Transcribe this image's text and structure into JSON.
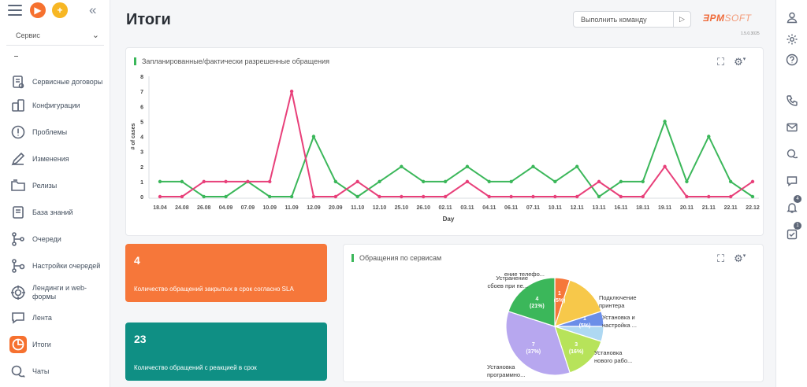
{
  "sidebar": {
    "workspace": "Сервис",
    "items": [
      {
        "label": "Сервисные договоры",
        "icon": "contract-icon"
      },
      {
        "label": "Конфигурации",
        "icon": "configuration-icon"
      },
      {
        "label": "Проблемы",
        "icon": "problem-icon"
      },
      {
        "label": "Изменения",
        "icon": "pencil-icon"
      },
      {
        "label": "Релизы",
        "icon": "release-folder-icon"
      },
      {
        "label": "База знаний",
        "icon": "knowledge-book-icon"
      },
      {
        "label": "Очереди",
        "icon": "queue-icon"
      },
      {
        "label": "Настройки очередей",
        "icon": "queue-settings-icon"
      },
      {
        "label": "Лендинги и web-формы",
        "icon": "target-icon"
      },
      {
        "label": "Лента",
        "icon": "feed-icon"
      },
      {
        "label": "Итоги",
        "icon": "analytics-pie-icon"
      },
      {
        "label": "Чаты",
        "icon": "chat-icon"
      }
    ],
    "active_item": "Итоги"
  },
  "header": {
    "title": "Итоги",
    "command_placeholder": "Выполнить команду",
    "logo_text_1": "ƎPM",
    "logo_text_2": "SOFT",
    "version": "1.5.0.3025"
  },
  "rightbar": {
    "icons": [
      "user-icon",
      "gear-icon",
      "help-icon",
      "phone-icon",
      "email-icon",
      "chat-bubbles-icon",
      "comment-icon",
      "bell-icon",
      "task-check-icon"
    ],
    "bell_badge": "4",
    "task_badge": "1"
  },
  "chart_card": {
    "title": "Запланированные/фактически разрешенные обращения"
  },
  "chart_data": [
    {
      "type": "line",
      "title": "Запланированные/фактически разрешенные обращения",
      "xlabel": "Day",
      "ylabel": "# of cases",
      "ylim": [
        0,
        8
      ],
      "yticks": [
        0,
        1,
        2,
        3,
        4,
        5,
        6,
        7,
        8
      ],
      "x": [
        "18.04",
        "24.08",
        "26.08",
        "04.09",
        "07.09",
        "10.09",
        "11.09",
        "12.09",
        "20.09",
        "11.10",
        "12.10",
        "25.10",
        "26.10",
        "02.11",
        "03.11",
        "04.11",
        "06.11",
        "07.11",
        "10.11",
        "12.11",
        "13.11",
        "16.11",
        "18.11",
        "19.11",
        "20.11",
        "21.11",
        "22.11",
        "22.12"
      ],
      "series": [
        {
          "color": "#3bb75a",
          "values": [
            1,
            1,
            0,
            0,
            1,
            0,
            0,
            4,
            1,
            0,
            1,
            2,
            1,
            1,
            2,
            1,
            1,
            2,
            1,
            2,
            0,
            1,
            1,
            5,
            1,
            4,
            1,
            0
          ]
        },
        {
          "color": "#e8407a",
          "values": [
            0,
            0,
            1,
            1,
            1,
            1,
            7,
            0,
            0,
            1,
            0,
            0,
            0,
            0,
            1,
            0,
            0,
            0,
            0,
            0,
            1,
            0,
            0,
            2,
            0,
            0,
            0,
            1
          ]
        }
      ],
      "grid": false
    },
    {
      "type": "pie",
      "title": "Обращения по сервисам",
      "slices": [
        {
          "name": "ение телефо...",
          "value": 1,
          "label": "1\n(5%)",
          "color": "#f6773a"
        },
        {
          "name": "Подключение принтера",
          "value": 3,
          "label": "",
          "color": "#f7c84a"
        },
        {
          "name": "Установка и настройка ...",
          "value": 1,
          "label": "1\n(5%)",
          "color": "#6b8ee8"
        },
        {
          "name": "",
          "value": 1,
          "label": "",
          "color": "#aed8f2"
        },
        {
          "name": "Установка нового рабо...",
          "value": 3,
          "label": "3\n(16%)",
          "color": "#b7e35a"
        },
        {
          "name": "Установка программно...",
          "value": 7,
          "label": "7\n(37%)",
          "color": "#b7a7ef"
        },
        {
          "name": "Устранение сбоев при пе...",
          "value": 4,
          "label": "4\n(21%)",
          "color": "#3bb75a"
        }
      ]
    }
  ],
  "kpis": [
    {
      "value": "4",
      "label": "Количество обращений закрытых в срок согласно SLA",
      "color": "#f6773a"
    },
    {
      "value": "23",
      "label": "Количество обращений с реакцией в срок",
      "color": "#0f8f84"
    }
  ],
  "pie_card": {
    "title": "Обращения по сервисам"
  }
}
